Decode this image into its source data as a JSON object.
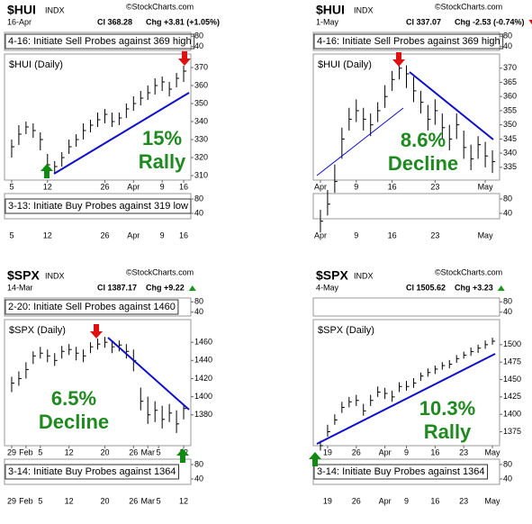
{
  "chart_data": [
    {
      "type": "ohlc",
      "symbol": "$HUI",
      "exchange": "INDX",
      "watermark": "©StockCharts.com",
      "date": "16-Apr",
      "close_label": "Cl 368.28",
      "change_label": "Chg +3.81 (+1.05%)",
      "top_panel": {
        "text": "4-16: Initiate Sell Probes against 369 high",
        "ylim": [
          25,
          95
        ],
        "yticks": [
          80,
          40
        ]
      },
      "bottom_panel": {
        "text": "3-13: Initiate Buy Probes against 319 low",
        "ylim": [
          25,
          95
        ],
        "yticks": [
          80,
          40
        ]
      },
      "label": "$HUI (Daily)",
      "annotation": [
        "15%",
        "Rally"
      ],
      "xlim": [
        -1,
        25
      ],
      "xticks": [
        {
          "value": 0,
          "label": "5"
        },
        {
          "value": 5,
          "label": "12"
        },
        {
          "value": 13,
          "label": "26"
        },
        {
          "value": 17,
          "label": "Apr"
        },
        {
          "value": 21,
          "label": "9"
        },
        {
          "value": 24,
          "label": "16"
        }
      ],
      "ylim": [
        307.5,
        377.5
      ],
      "yticks": [
        310,
        320,
        330,
        340,
        350,
        360,
        370
      ],
      "high": [
        330,
        338,
        340,
        339,
        334,
        322,
        318,
        323,
        330,
        333,
        339,
        341,
        345,
        347,
        345,
        345,
        350,
        354,
        357,
        360,
        364,
        365,
        362,
        367,
        371
      ],
      "low": [
        320,
        327,
        333,
        331,
        324,
        313,
        311,
        315,
        322,
        326,
        330,
        334,
        337,
        339,
        337,
        338,
        342,
        346,
        349,
        352,
        355,
        357,
        354,
        359,
        362
      ],
      "close": [
        326,
        333,
        337,
        335,
        330,
        316,
        315,
        320,
        326,
        330,
        335,
        338,
        341,
        344,
        340,
        342,
        347,
        350,
        353,
        356,
        360,
        362,
        358,
        364,
        368
      ]
    },
    {
      "type": "ohlc",
      "symbol": "$HUI",
      "exchange": "INDX",
      "watermark": "©StockCharts.com",
      "date": "1-May",
      "close_label": "Cl 337.07",
      "change_label": "Chg -2.53 (-0.74%)",
      "top_panel": {
        "text": "4-16: Initiate Sell Probes against 369 high",
        "ylim": [
          25,
          95
        ],
        "yticks": [
          80,
          40
        ]
      },
      "bottom_panel": {
        "ylim": [
          25,
          95
        ],
        "yticks": [
          80,
          40
        ]
      },
      "label": "$HUI (Daily)",
      "annotation": [
        "8.6%",
        "Decline"
      ],
      "xlim": [
        -1,
        25
      ],
      "xticks": [
        {
          "value": 0,
          "label": "Apr"
        },
        {
          "value": 5,
          "label": "9"
        },
        {
          "value": 10,
          "label": "16"
        },
        {
          "value": 16,
          "label": "23"
        },
        {
          "value": 23,
          "label": "May"
        }
      ],
      "ylim": [
        330.5,
        375
      ],
      "yticks": [
        335,
        340,
        345,
        350,
        355,
        360,
        365,
        370
      ],
      "high": [
        320,
        327,
        336,
        349,
        356,
        359,
        356,
        354,
        358,
        364,
        369,
        372,
        371,
        367,
        362,
        357,
        359,
        354,
        350,
        354,
        348,
        343,
        346,
        344,
        341
      ],
      "low": [
        312,
        318,
        326,
        338,
        348,
        351,
        348,
        346,
        351,
        356,
        362,
        366,
        363,
        358,
        354,
        348,
        350,
        345,
        341,
        345,
        338,
        334,
        338,
        335,
        333
      ],
      "close": [
        316,
        322,
        330,
        345,
        352,
        355,
        352,
        350,
        355,
        360,
        366,
        370,
        368,
        362,
        358,
        352,
        355,
        349,
        345,
        350,
        342,
        338,
        343,
        339,
        337
      ]
    },
    {
      "type": "ohlc",
      "symbol": "$SPX",
      "exchange": "INDX",
      "watermark": "©StockCharts.com",
      "date": "14-Mar",
      "close_label": "Cl 1387.17",
      "change_label": "Chg +9.22",
      "top_panel": {
        "text": "2-20: Initiate Sell Probes against 1460",
        "ylim": [
          25,
          95
        ],
        "yticks": [
          80,
          40
        ]
      },
      "bottom_panel": {
        "text": "3-14: Initiate Buy Probes against 1364",
        "ylim": [
          25,
          95
        ],
        "yticks": [
          80,
          40
        ]
      },
      "label": "$SPX (Daily)",
      "annotation": [
        "6.5%",
        "Decline"
      ],
      "xlim": [
        -1,
        25
      ],
      "xticks": [
        {
          "value": 0,
          "label": "29"
        },
        {
          "value": 2,
          "label": "Feb"
        },
        {
          "value": 4,
          "label": "5"
        },
        {
          "value": 8,
          "label": "12"
        },
        {
          "value": 13,
          "label": "20"
        },
        {
          "value": 17,
          "label": "26"
        },
        {
          "value": 19,
          "label": "Mar"
        },
        {
          "value": 20.5,
          "label": "5"
        },
        {
          "value": 24,
          "label": "12"
        }
      ],
      "ylim": [
        1346,
        1485
      ],
      "yticks": [
        1380,
        1400,
        1420,
        1440,
        1460
      ],
      "high": [
        1422,
        1428,
        1438,
        1450,
        1455,
        1452,
        1448,
        1456,
        1458,
        1455,
        1452,
        1460,
        1464,
        1466,
        1462,
        1462,
        1458,
        1452,
        1410,
        1400,
        1395,
        1390,
        1392,
        1385,
        1392
      ],
      "low": [
        1405,
        1412,
        1420,
        1436,
        1442,
        1438,
        1434,
        1442,
        1446,
        1440,
        1438,
        1448,
        1452,
        1454,
        1448,
        1450,
        1442,
        1428,
        1385,
        1370,
        1372,
        1365,
        1372,
        1360,
        1375
      ],
      "close": [
        1415,
        1420,
        1430,
        1445,
        1448,
        1445,
        1440,
        1450,
        1452,
        1448,
        1445,
        1455,
        1458,
        1460,
        1455,
        1457,
        1450,
        1440,
        1395,
        1380,
        1385,
        1375,
        1382,
        1370,
        1387
      ]
    },
    {
      "type": "ohlc",
      "symbol": "$SPX",
      "exchange": "INDX",
      "watermark": "©StockCharts.com",
      "date": "4-May",
      "close_label": "Cl 1505.62",
      "change_label": "Chg +3.23",
      "top_panel": {
        "ylim": [
          25,
          95
        ],
        "yticks": [
          80,
          40
        ]
      },
      "bottom_panel": {
        "text": "3-14: Initiate Buy Probes against 1364",
        "ylim": [
          25,
          95
        ],
        "yticks": [
          80,
          40
        ]
      },
      "label": "$SPX (Daily)",
      "annotation": [
        "10.3%",
        "Rally"
      ],
      "xlim": [
        -1,
        25
      ],
      "xticks": [
        {
          "value": 1,
          "label": "19"
        },
        {
          "value": 5,
          "label": "26"
        },
        {
          "value": 9,
          "label": "Apr"
        },
        {
          "value": 12,
          "label": "9"
        },
        {
          "value": 16,
          "label": "16"
        },
        {
          "value": 20,
          "label": "23"
        },
        {
          "value": 24,
          "label": "May"
        }
      ],
      "ylim": [
        1355,
        1536
      ],
      "yticks": [
        1375,
        1400,
        1425,
        1450,
        1475,
        1500
      ],
      "high": [
        1362,
        1385,
        1400,
        1418,
        1425,
        1428,
        1415,
        1428,
        1440,
        1438,
        1434,
        1446,
        1448,
        1452,
        1460,
        1466,
        1470,
        1475,
        1478,
        1485,
        1490,
        1496,
        1500,
        1506,
        1510
      ],
      "low": [
        1348,
        1368,
        1385,
        1402,
        1410,
        1412,
        1398,
        1412,
        1425,
        1422,
        1418,
        1432,
        1434,
        1438,
        1448,
        1454,
        1458,
        1464,
        1466,
        1474,
        1480,
        1484,
        1488,
        1494,
        1500
      ],
      "close": [
        1355,
        1375,
        1392,
        1410,
        1418,
        1420,
        1405,
        1420,
        1432,
        1430,
        1425,
        1440,
        1440,
        1445,
        1455,
        1460,
        1465,
        1470,
        1472,
        1480,
        1485,
        1490,
        1495,
        1500,
        1505
      ]
    }
  ]
}
